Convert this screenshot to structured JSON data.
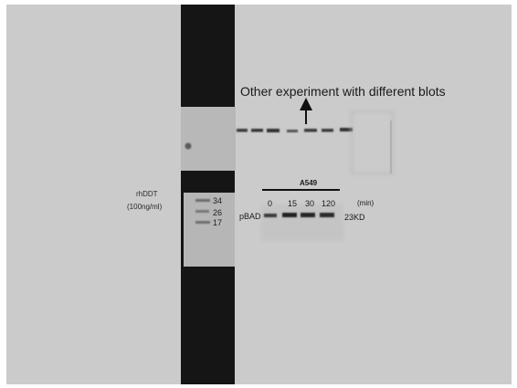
{
  "annotation": {
    "text": "Other experiment with different blots"
  },
  "sample": {
    "line1": "rhDDT",
    "line2": "(100ng/ml)"
  },
  "ladder": {
    "marks": [
      "34",
      "26",
      "17"
    ]
  },
  "blot": {
    "cell_line": "A549",
    "timepoints": [
      "0",
      "15",
      "30",
      "120"
    ],
    "time_unit": "(min)",
    "protein": "pBAD",
    "molecular_weight": "23KD"
  },
  "colors": {
    "background": "#cccccc",
    "dark_strip": "#141414",
    "membrane": "#b9b9b9",
    "band": "#2b2b2b"
  }
}
